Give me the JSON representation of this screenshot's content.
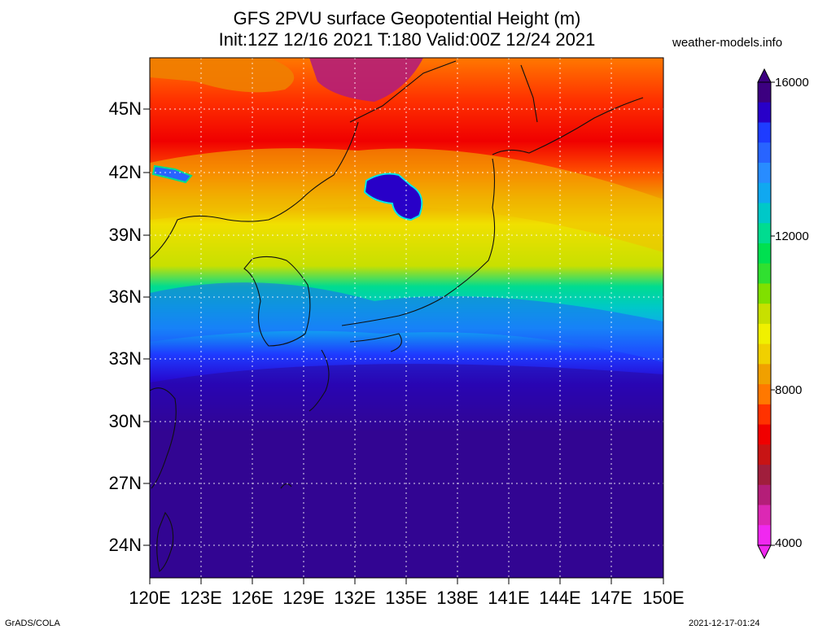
{
  "title": {
    "line1": "GFS 2PVU surface Geopotential Height (m)",
    "line2": "Init:12Z 12/16 2021 T:180 Valid:00Z 12/24 2021"
  },
  "site": "weather-models.info",
  "footer": {
    "left": "GrADS/COLA",
    "right": "2021-12-17-01:24"
  },
  "axes": {
    "lat_labels": [
      "45N",
      "42N",
      "39N",
      "36N",
      "33N",
      "30N",
      "27N",
      "24N"
    ],
    "lon_labels": [
      "120E",
      "123E",
      "126E",
      "129E",
      "132E",
      "135E",
      "138E",
      "141E",
      "144E",
      "147E",
      "150E"
    ]
  },
  "colorbar": {
    "labels": [
      "16000",
      "12000",
      "8000",
      "4000"
    ],
    "colors_top_to_bottom": [
      "#3c0080",
      "#2800c8",
      "#1e3cff",
      "#2864ff",
      "#288cff",
      "#10a8f0",
      "#00c8c8",
      "#00dc90",
      "#00e050",
      "#30e030",
      "#80e000",
      "#c8e000",
      "#f0f000",
      "#f0d000",
      "#f0a000",
      "#ff7800",
      "#ff3200",
      "#f00000",
      "#c81414",
      "#a01e3c",
      "#b41e78",
      "#dc28b4",
      "#f028f0"
    ]
  }
}
